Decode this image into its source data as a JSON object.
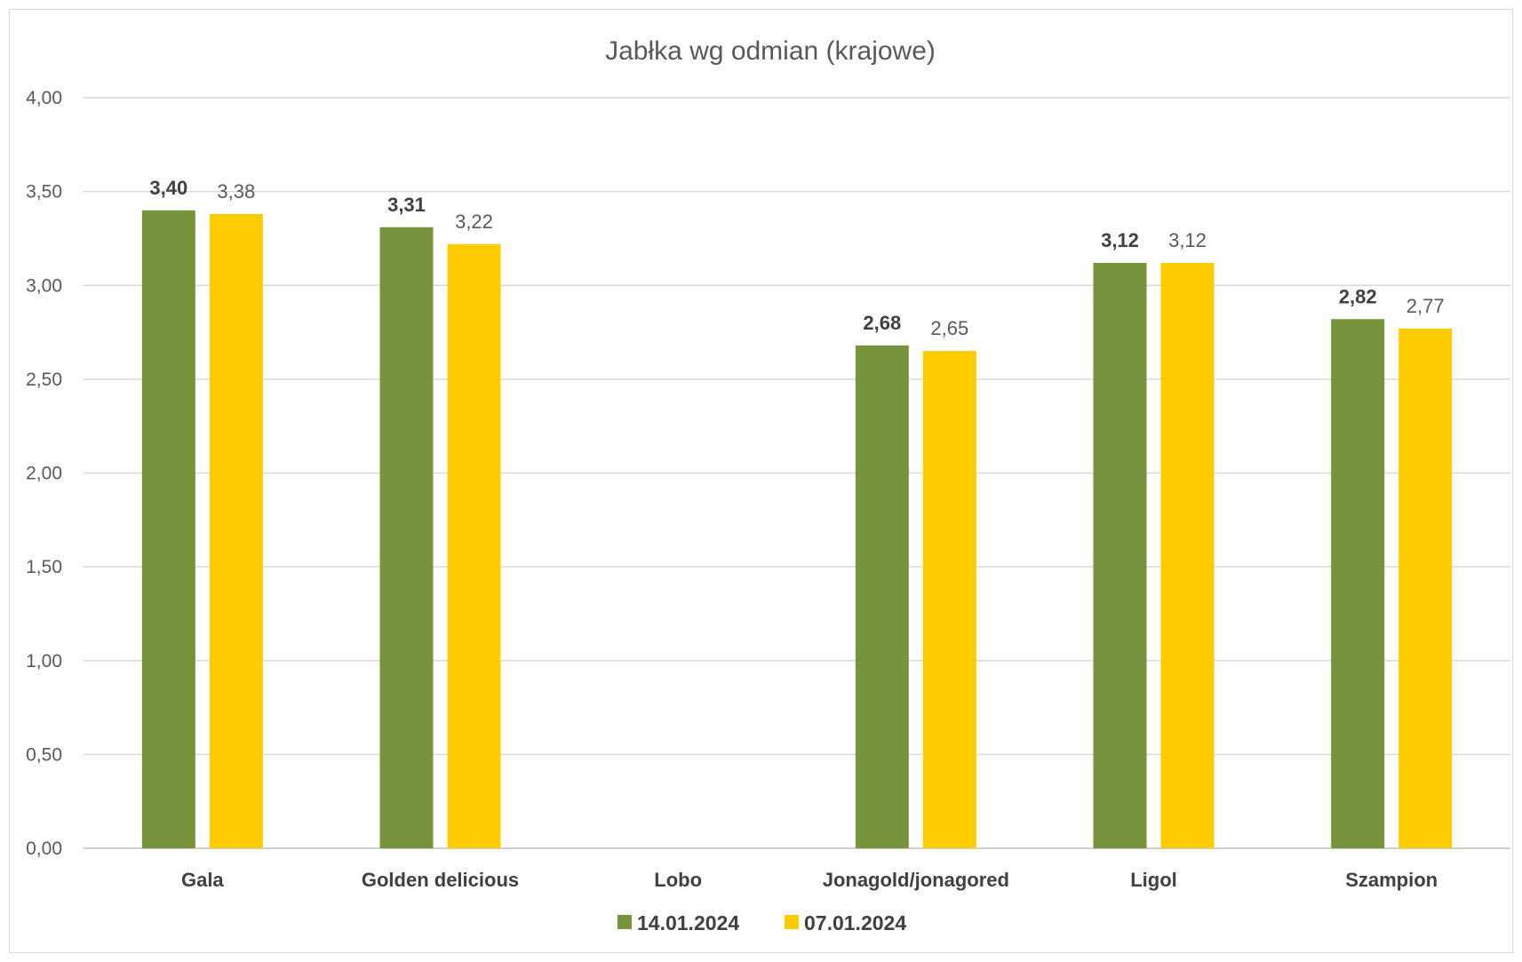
{
  "chart_data": {
    "type": "bar",
    "title": "Jabłka wg odmian (krajowe)",
    "xlabel": "",
    "ylabel": "",
    "ylim": [
      0,
      4
    ],
    "y_ticks": [
      "0,00",
      "0,50",
      "1,00",
      "1,50",
      "2,00",
      "2,50",
      "3,00",
      "3,50",
      "4,00"
    ],
    "y_tick_values": [
      0,
      0.5,
      1,
      1.5,
      2,
      2.5,
      3,
      3.5,
      4
    ],
    "grid": true,
    "legend_position": "bottom",
    "categories": [
      "Gala",
      "Golden delicious",
      "Lobo",
      "Jonagold/jonagored",
      "Ligol",
      "Szampion"
    ],
    "series": [
      {
        "name": "14.01.2024",
        "color": "#77933c",
        "values": [
          3.4,
          3.31,
          null,
          2.68,
          3.12,
          2.82
        ],
        "labels": [
          "3,40",
          "3,31",
          "",
          "2,68",
          "3,12",
          "2,82"
        ],
        "label_bold": true
      },
      {
        "name": "07.01.2024",
        "color": "#ffcc00",
        "values": [
          3.38,
          3.22,
          null,
          2.65,
          3.12,
          2.77
        ],
        "labels": [
          "3,38",
          "3,22",
          "",
          "2,65",
          "3,12",
          "2,77"
        ],
        "label_bold": false
      }
    ]
  }
}
